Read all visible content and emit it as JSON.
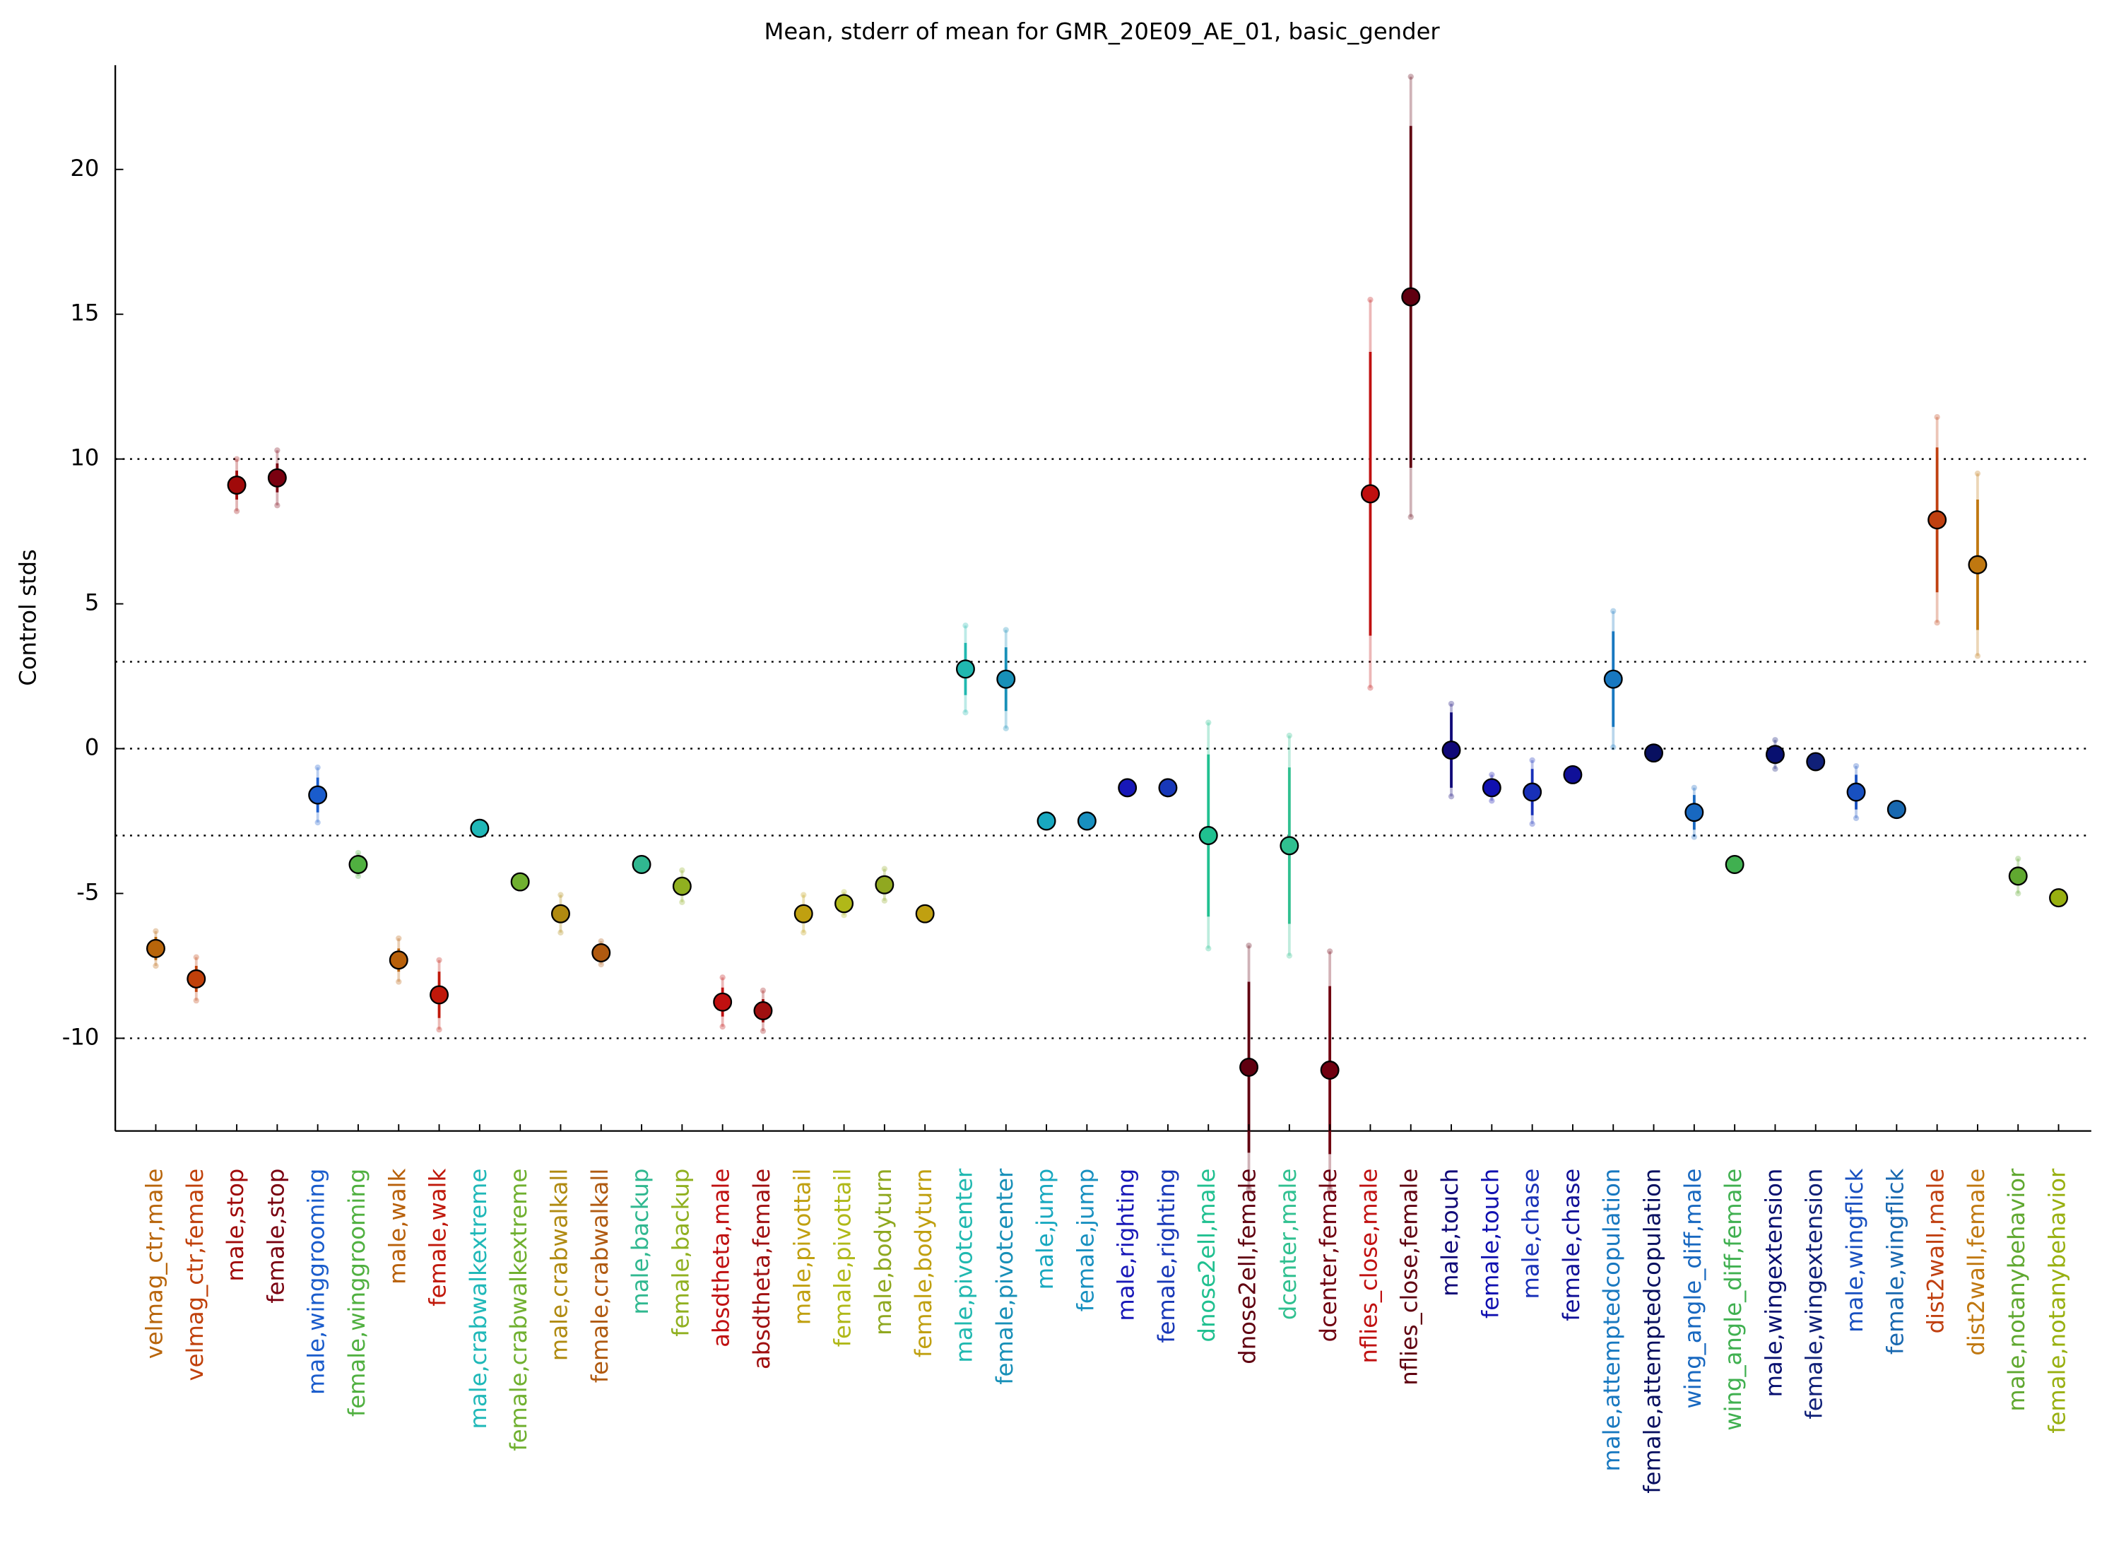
{
  "chart_data": {
    "type": "errorbar",
    "title": "Mean, stderr of mean for GMR_20E09_AE_01, basic_gender",
    "y_label": "Control stds",
    "ylim": [
      -13.2,
      23.6
    ],
    "yticks": [
      -10,
      -5,
      0,
      5,
      10,
      15,
      20
    ],
    "hlines": [
      10,
      3,
      0,
      -3,
      -10
    ],
    "categories": [
      "velmag_ctr,male",
      "velmag_ctr,female",
      "male,stop",
      "female,stop",
      "male,winggrooming",
      "female,winggrooming",
      "male,walk",
      "female,walk",
      "male,crabwalkextreme",
      "female,crabwalkextreme",
      "male,crabwalkall",
      "female,crabwalkall",
      "male,backup",
      "female,backup",
      "absdtheta,male",
      "absdtheta,female",
      "male,pivottail",
      "female,pivottail",
      "male,bodyturn",
      "female,bodyturn",
      "male,pivotcenter",
      "female,pivotcenter",
      "male,jump",
      "female,jump",
      "male,righting",
      "female,righting",
      "dnose2ell,male",
      "dnose2ell,female",
      "dcenter,male",
      "dcenter,female",
      "nflies_close,male",
      "nflies_close,female",
      "male,touch",
      "female,touch",
      "male,chase",
      "female,chase",
      "male,attemptedcopulation",
      "female,attemptedcopulation",
      "wing_angle_diff,male",
      "wing_angle_diff,female",
      "male,wingextension",
      "female,wingextension",
      "male,wingflick",
      "female,wingflick",
      "dist2wall,male",
      "dist2wall,female",
      "male,notanybehavior",
      "female,notanybehavior"
    ],
    "values": [
      -6.9,
      -7.95,
      9.1,
      9.35,
      -1.6,
      -4.0,
      -7.3,
      -8.5,
      -2.75,
      -4.6,
      -5.7,
      -7.05,
      -4.0,
      -4.75,
      -8.75,
      -9.05,
      -5.7,
      -5.35,
      -4.7,
      -5.7,
      2.75,
      2.4,
      -2.5,
      -2.5,
      -1.35,
      -1.35,
      -3.0,
      -11.0,
      -3.35,
      -11.1,
      8.8,
      15.6,
      -0.05,
      -1.35,
      -1.5,
      -0.9,
      2.4,
      -0.15,
      -2.2,
      -4.0,
      -0.2,
      -0.45,
      -1.5,
      -2.1,
      7.9,
      6.35,
      -4.4,
      -5.15
    ],
    "errors": [
      0.4,
      0.45,
      0.5,
      0.5,
      0.6,
      0.2,
      0.4,
      0.8,
      0.1,
      0.1,
      0.3,
      0.2,
      0.1,
      0.3,
      0.5,
      0.4,
      0.3,
      0.2,
      0.3,
      0.1,
      0.9,
      1.1,
      0.05,
      0.05,
      0.1,
      0.1,
      2.8,
      2.95,
      2.7,
      2.9,
      4.9,
      5.9,
      1.3,
      0.3,
      0.8,
      0.1,
      1.65,
      0.05,
      0.6,
      0.1,
      0.3,
      0.1,
      0.6,
      0.1,
      2.5,
      2.25,
      0.3,
      0.1
    ],
    "std": [
      0.6,
      0.75,
      0.9,
      0.95,
      0.95,
      0.4,
      0.75,
      1.2,
      0.15,
      0.2,
      0.65,
      0.4,
      0.2,
      0.55,
      0.85,
      0.7,
      0.65,
      0.4,
      0.55,
      0.2,
      1.5,
      1.7,
      0.1,
      0.1,
      0.15,
      0.15,
      3.9,
      4.2,
      3.8,
      4.1,
      6.7,
      7.6,
      1.6,
      0.45,
      1.1,
      0.15,
      2.35,
      0.1,
      0.85,
      0.15,
      0.5,
      0.15,
      0.9,
      0.15,
      3.55,
      3.15,
      0.6,
      0.15
    ],
    "colors": [
      "#b8650a",
      "#c0400a",
      "#a00a0a",
      "#7a0010",
      "#1a5ccc",
      "#50b040",
      "#b8600a",
      "#c0180a",
      "#20b8b8",
      "#70b030",
      "#b08a10",
      "#b05a10",
      "#30b890",
      "#90b020",
      "#c01010",
      "#a01010",
      "#c0a010",
      "#b0b818",
      "#90a820",
      "#c0a010",
      "#20b8b0",
      "#1890b8",
      "#18a8c0",
      "#1890c0",
      "#1818b8",
      "#1838b8",
      "#20c090",
      "#600010",
      "#30c090",
      "#700010",
      "#c01010",
      "#600010",
      "#100878",
      "#1010b0",
      "#1830b8",
      "#101098",
      "#1878c0",
      "#081060",
      "#1868c0",
      "#40b050",
      "#081070",
      "#102078",
      "#1850c0",
      "#1868b0",
      "#c04010",
      "#c07810",
      "#60a830",
      "#98b010"
    ]
  }
}
